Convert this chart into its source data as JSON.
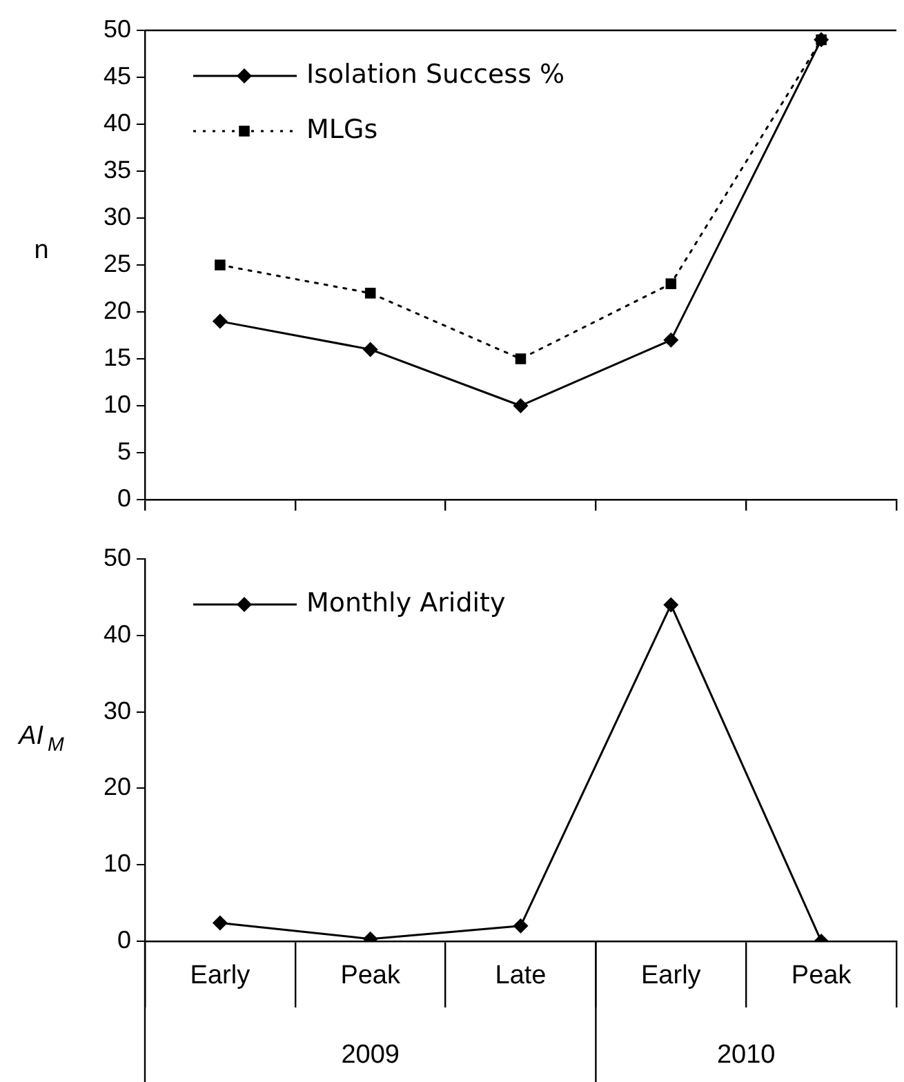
{
  "chart_data": [
    {
      "type": "line",
      "categories": [
        null,
        null,
        null,
        null,
        null
      ],
      "ylabel": "n",
      "ylim": [
        0,
        50
      ],
      "yticks": [
        0,
        5,
        10,
        15,
        20,
        25,
        30,
        35,
        40,
        45,
        50
      ],
      "tick_labels": "y",
      "legend": "top left",
      "grid": false,
      "series": [
        {
          "name": "Isolation Success %",
          "color": "#000000",
          "marker": "diamond",
          "line_style": "solid",
          "values": [
            19,
            16,
            10,
            17,
            49
          ]
        },
        {
          "name": "MLGs",
          "color": "#000000",
          "marker": "square",
          "line_style": "dotted",
          "values": [
            25,
            22,
            15,
            23,
            49
          ]
        }
      ]
    },
    {
      "type": "line",
      "categories": [
        "Early",
        "Peak",
        "Late",
        "Early",
        "Peak"
      ],
      "ylabel": "AI$_{M}$",
      "ylim": [
        0,
        50
      ],
      "yticks": [
        0,
        10,
        20,
        30,
        40,
        50
      ],
      "legend": "top left",
      "grid": false,
      "annotations": [
        "2009",
        "2010"
      ],
      "series": [
        {
          "name": "Monthly Aridity",
          "color": "#000000",
          "marker": "diamond",
          "line_style": "solid",
          "values": [
            2.4,
            0.3,
            2,
            44,
            0
          ]
        }
      ]
    }
  ]
}
